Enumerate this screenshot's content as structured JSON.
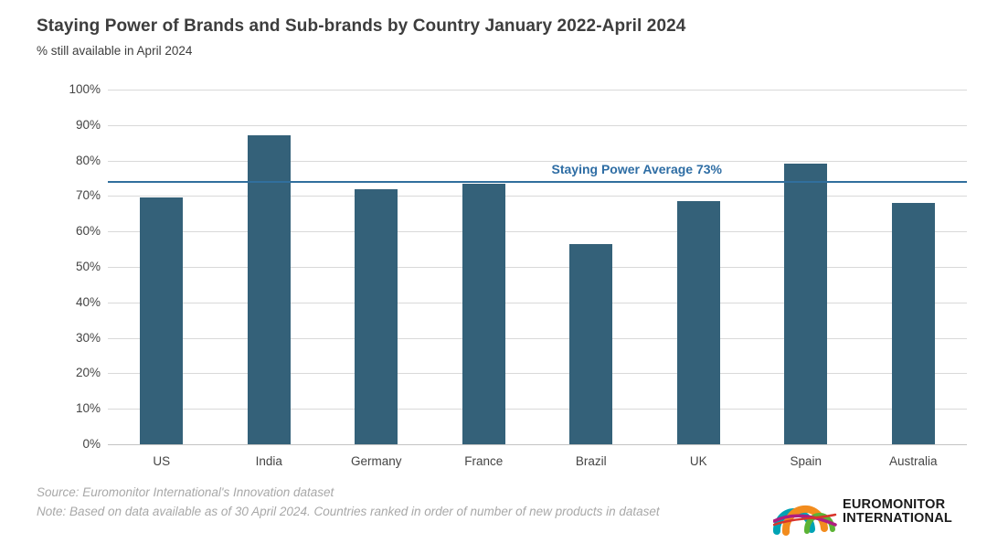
{
  "header": {
    "title": "Staying Power of Brands and Sub-brands by Country January 2022-April 2024",
    "subtitle": "% still available in April 2024"
  },
  "chart_data": {
    "type": "bar",
    "categories": [
      "US",
      "India",
      "Germany",
      "France",
      "Brazil",
      "UK",
      "Spain",
      "Australia"
    ],
    "values": [
      69.5,
      87,
      72,
      73.5,
      56.5,
      68.5,
      79,
      68
    ],
    "title": "Staying Power of Brands and Sub-brands by Country January 2022-April 2024",
    "subtitle": "% still available in April 2024",
    "xlabel": "",
    "ylabel": "",
    "ylim": [
      0,
      100
    ],
    "ytick_step": 10,
    "ytick_suffix": "%",
    "grid": true,
    "legend": "none",
    "bar_color": "#346179",
    "average_line": {
      "label": "Staying Power Average 73%",
      "value": 73,
      "line_position_pct": 74.3,
      "color": "#316f9d",
      "label_color": "#2e6da4"
    }
  },
  "footer": {
    "source": "Source: Euromonitor International's Innovation dataset",
    "note": "Note: Based on data available as of 30 April 2024. Countries ranked in order of number of new products in dataset",
    "logo": {
      "line1": "EUROMONITOR",
      "line2": "INTERNATIONAL",
      "icon": "euromonitor-arcs-icon",
      "colors": {
        "teal": "#00a3b4",
        "orange": "#f28c1e",
        "green": "#5cb335",
        "magenta": "#b01d7f",
        "red": "#d9342b"
      }
    }
  },
  "colors": {
    "background": "#ffffff",
    "bar": "#346179",
    "gridline": "#d9d9d9",
    "axis_text": "#444444",
    "title_text": "#3d3d3d",
    "source_text": "#a8a8a8"
  }
}
